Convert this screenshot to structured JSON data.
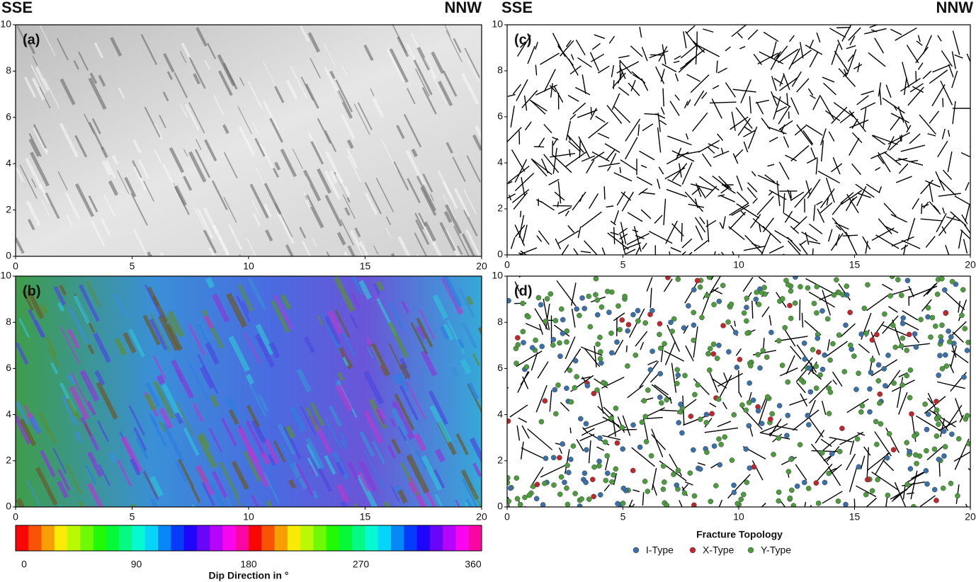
{
  "headers": [
    {
      "left": "SSE",
      "right": "NNW"
    },
    {
      "left": "SSE",
      "right": "NNW"
    }
  ],
  "panels": [
    {
      "label": "(a)",
      "xlim": [
        0,
        20
      ],
      "ylim": [
        0,
        10
      ],
      "xticks": [
        0,
        5,
        10,
        15,
        20
      ],
      "yticks": [
        0,
        2,
        4,
        6,
        8,
        10
      ]
    },
    {
      "label": "(b)",
      "xlim": [
        0,
        20
      ],
      "ylim": [
        0,
        10
      ],
      "xticks": [
        0,
        5,
        10,
        15,
        20
      ],
      "yticks": [
        0,
        2,
        4,
        6,
        8,
        10
      ]
    },
    {
      "label": "(c)",
      "xlim": [
        0,
        20
      ],
      "ylim": [
        0,
        10
      ],
      "xticks": [
        0,
        5,
        10,
        15,
        20
      ],
      "yticks": [
        0,
        2,
        4,
        6,
        8,
        10
      ]
    },
    {
      "label": "(d)",
      "xlim": [
        0,
        20
      ],
      "ylim": [
        0,
        10
      ],
      "xticks": [
        0,
        5,
        10,
        15,
        20
      ],
      "yticks": [
        0,
        2,
        4,
        6,
        8,
        10
      ]
    }
  ],
  "colorbar": {
    "title": "Dip Direction in °",
    "lim": [
      0,
      360
    ],
    "ticks": [
      0,
      90,
      180,
      270,
      360
    ]
  },
  "legend": {
    "title": "Fracture Topology",
    "items": [
      {
        "name": "I-Type",
        "color": "#3b6fa8"
      },
      {
        "name": "X-Type",
        "color": "#c0272d"
      },
      {
        "name": "Y-Type",
        "color": "#4e9a3f"
      }
    ]
  }
}
